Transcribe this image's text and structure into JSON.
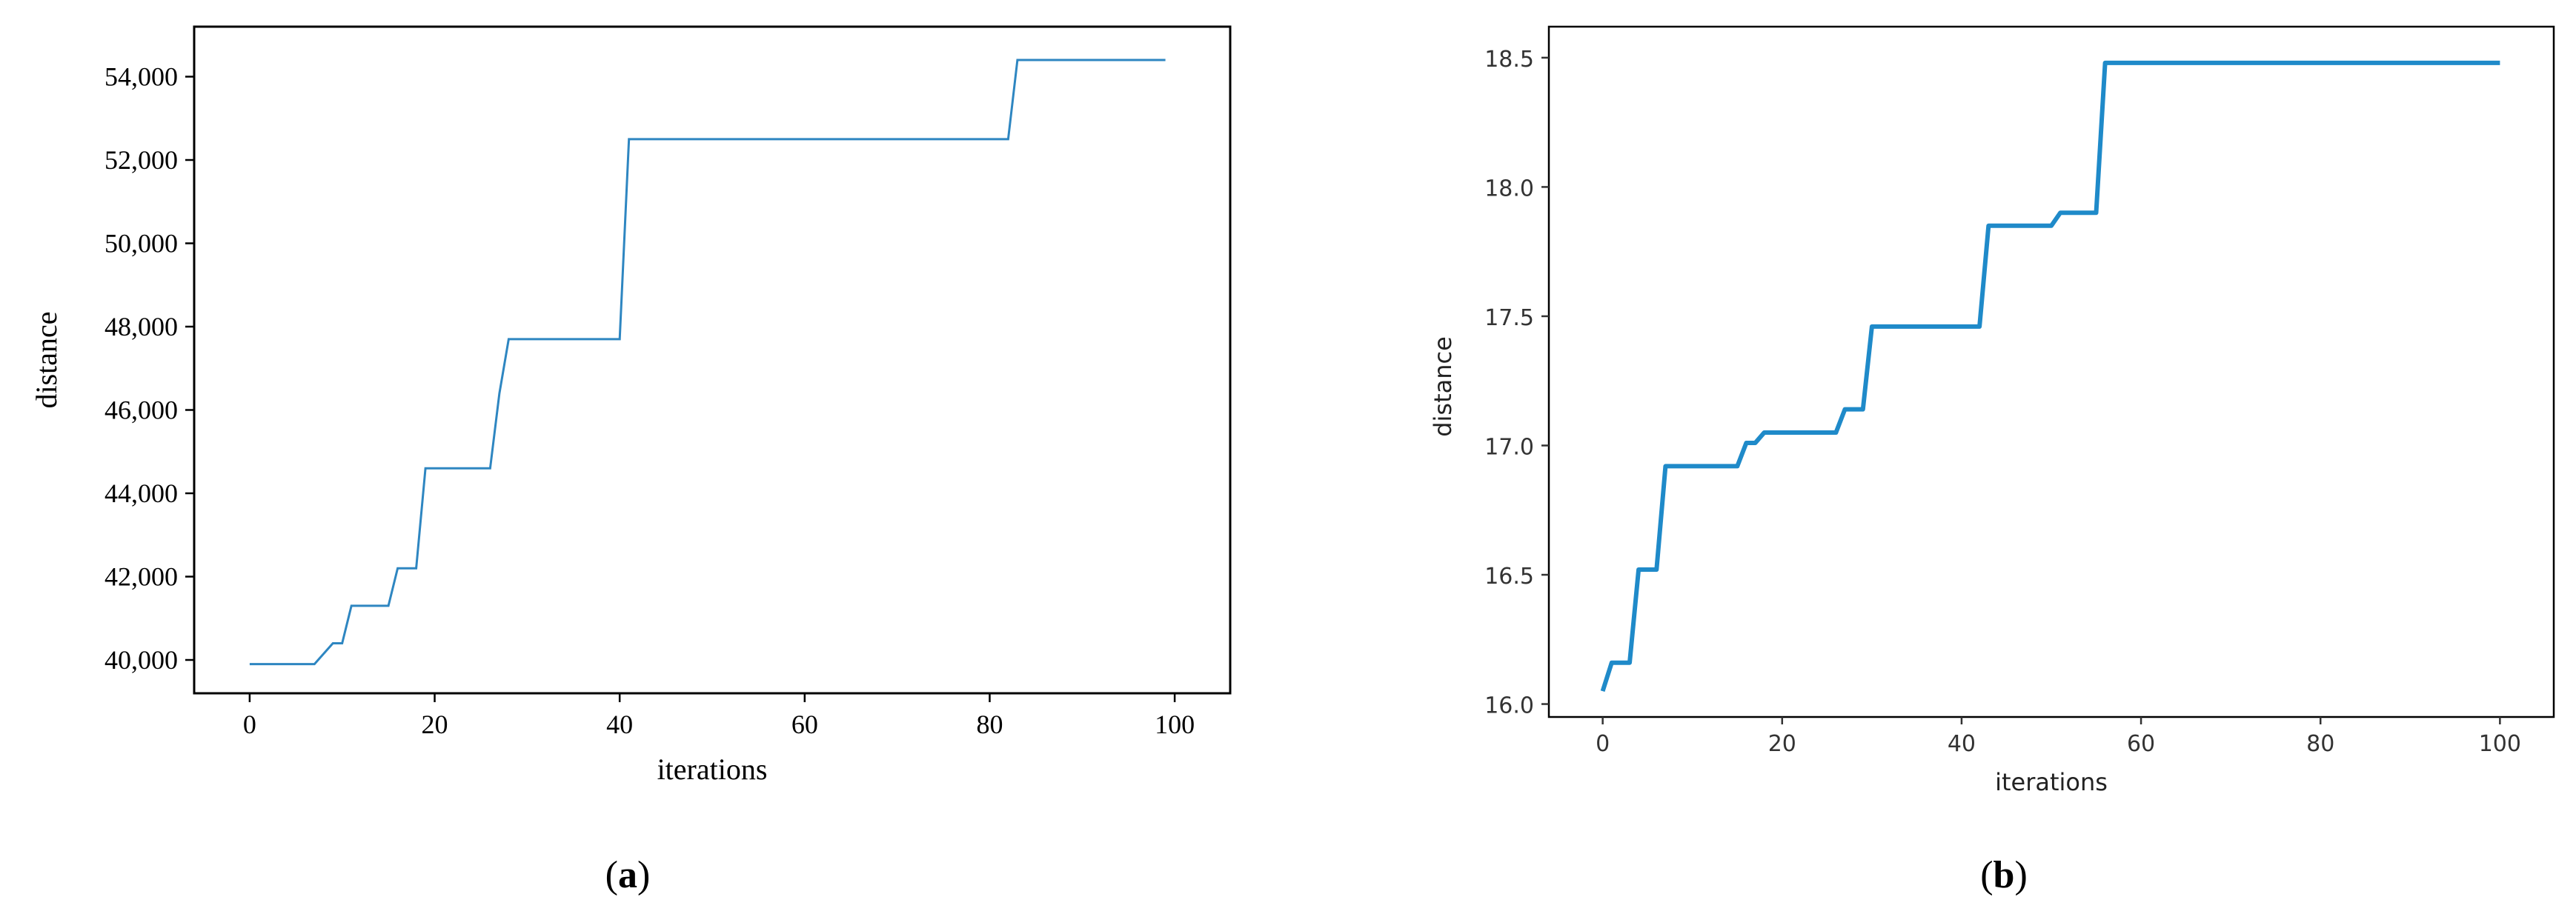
{
  "chart_data": [
    {
      "type": "line",
      "panel_label": "(a)",
      "panel_letter": "a",
      "xlabel": "iterations",
      "ylabel": "distance",
      "xlim": [
        -6,
        106
      ],
      "ylim": [
        39200,
        55200
      ],
      "xticks": [
        0,
        20,
        40,
        60,
        80,
        100
      ],
      "xtick_labels": [
        "0",
        "20",
        "40",
        "60",
        "80",
        "100"
      ],
      "yticks": [
        40000,
        42000,
        44000,
        46000,
        48000,
        50000,
        52000,
        54000
      ],
      "ytick_labels": [
        "40,000",
        "42,000",
        "44,000",
        "46,000",
        "48,000",
        "50,000",
        "52,000",
        "54,000"
      ],
      "grid": false,
      "line_color": "#2e86c1",
      "series": [
        {
          "x": [
            0,
            7,
            9,
            10,
            11,
            15,
            16,
            18,
            19,
            26,
            27,
            28,
            40,
            41,
            82,
            83,
            99
          ],
          "y": [
            39900,
            39900,
            40400,
            40400,
            41300,
            41300,
            42200,
            42200,
            44600,
            44600,
            46400,
            47700,
            47700,
            52500,
            52500,
            54400,
            54400
          ]
        }
      ]
    },
    {
      "type": "line",
      "panel_label": "(b)",
      "panel_letter": "b",
      "xlabel": "iterations",
      "ylabel": "distance",
      "xlim": [
        -6,
        106
      ],
      "ylim": [
        15.95,
        18.62
      ],
      "xticks": [
        0,
        20,
        40,
        60,
        80,
        100
      ],
      "xtick_labels": [
        "0",
        "20",
        "40",
        "60",
        "80",
        "100"
      ],
      "yticks": [
        16.0,
        16.5,
        17.0,
        17.5,
        18.0,
        18.5
      ],
      "ytick_labels": [
        "16.0",
        "16.5",
        "17.0",
        "17.5",
        "18.0",
        "18.5"
      ],
      "grid": false,
      "line_color": "#1f8ac9",
      "series": [
        {
          "x": [
            0,
            1,
            3,
            4,
            5,
            6,
            7,
            15,
            16,
            17,
            18,
            26,
            27,
            29,
            30,
            42,
            43,
            50,
            51,
            55,
            56,
            100
          ],
          "y": [
            16.05,
            16.16,
            16.16,
            16.52,
            16.52,
            16.52,
            16.92,
            16.92,
            17.01,
            17.01,
            17.05,
            17.05,
            17.14,
            17.14,
            17.46,
            17.46,
            17.85,
            17.85,
            17.9,
            17.9,
            18.48,
            18.48
          ]
        }
      ]
    }
  ]
}
